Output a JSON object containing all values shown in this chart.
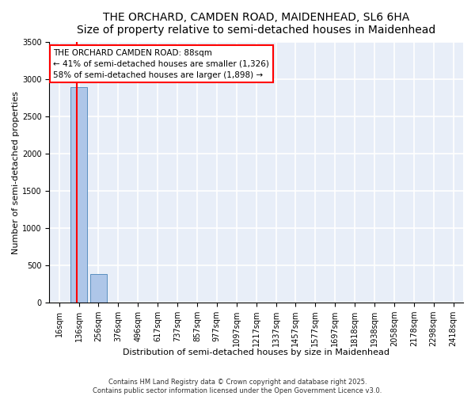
{
  "title_line1": "THE ORCHARD, CAMDEN ROAD, MAIDENHEAD, SL6 6HA",
  "title_line2": "Size of property relative to semi-detached houses in Maidenhead",
  "xlabel": "Distribution of semi-detached houses by size in Maidenhead",
  "ylabel": "Number of semi-detached properties",
  "categories": [
    "16sqm",
    "136sqm",
    "256sqm",
    "376sqm",
    "496sqm",
    "617sqm",
    "737sqm",
    "857sqm",
    "977sqm",
    "1097sqm",
    "1217sqm",
    "1337sqm",
    "1457sqm",
    "1577sqm",
    "1697sqm",
    "1818sqm",
    "1938sqm",
    "2058sqm",
    "2178sqm",
    "2298sqm",
    "2418sqm"
  ],
  "values": [
    0,
    2900,
    380,
    0,
    0,
    0,
    0,
    0,
    0,
    0,
    0,
    0,
    0,
    0,
    0,
    0,
    0,
    0,
    0,
    0,
    0
  ],
  "bar_color": "#aec6e8",
  "bar_edge_color": "#5a8fc0",
  "ylim": [
    0,
    3500
  ],
  "yticks": [
    0,
    500,
    1000,
    1500,
    2000,
    2500,
    3000,
    3500
  ],
  "red_line_x": 0.88,
  "annotation_title": "THE ORCHARD CAMDEN ROAD: 88sqm",
  "annotation_line2": "← 41% of semi-detached houses are smaller (1,326)",
  "annotation_line3": "58% of semi-detached houses are larger (1,898) →",
  "footer_line1": "Contains HM Land Registry data © Crown copyright and database right 2025.",
  "footer_line2": "Contains public sector information licensed under the Open Government Licence v3.0.",
  "bg_color": "#e8eef8",
  "grid_color": "#ffffff",
  "title_fontsize": 10,
  "axis_label_fontsize": 8,
  "tick_fontsize": 7,
  "annotation_fontsize": 7.5,
  "footer_fontsize": 6
}
